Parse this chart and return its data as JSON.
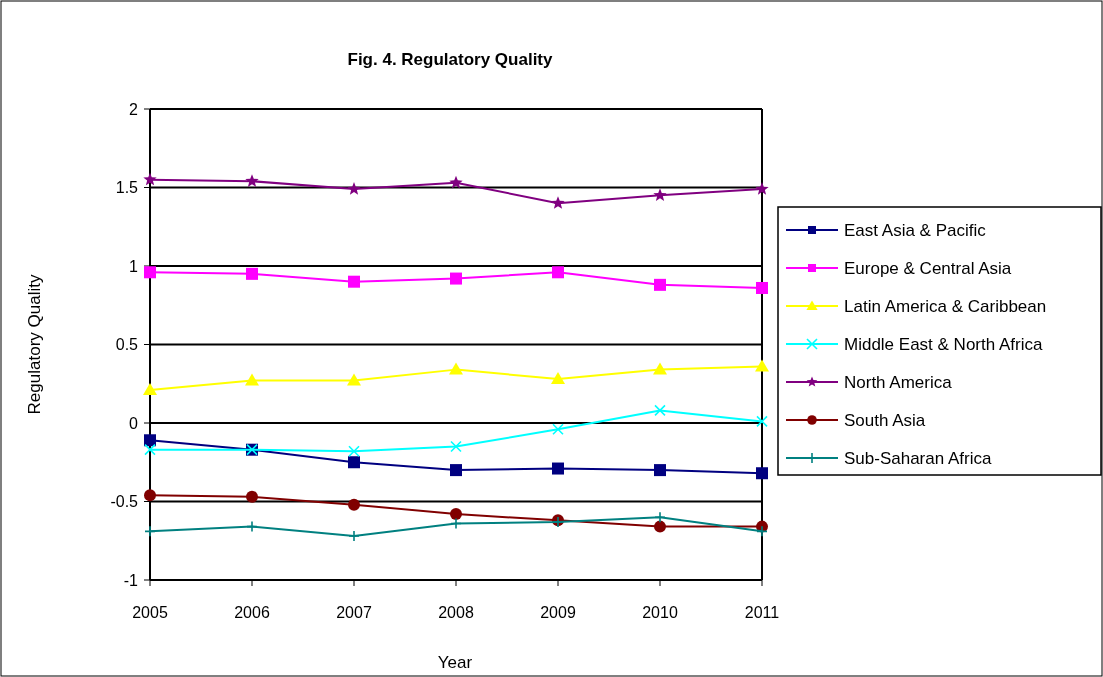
{
  "chart_data": {
    "type": "line",
    "title": "Fig. 4. Regulatory Quality",
    "xlabel": "Year",
    "ylabel": "Regulatory Quality",
    "x": [
      2005,
      2006,
      2007,
      2008,
      2009,
      2010,
      2011
    ],
    "xlim": [
      2005,
      2011
    ],
    "xticks": [
      2005,
      2006,
      2007,
      2008,
      2009,
      2010,
      2011
    ],
    "ylim": [
      -1,
      2
    ],
    "yticks": [
      -1,
      -0.5,
      0,
      0.5,
      1,
      1.5,
      2
    ],
    "grid": "y",
    "legend": "right",
    "series": [
      {
        "name": "East Asia & Pacific",
        "color": "#000080",
        "marker": "square",
        "values": [
          -0.11,
          -0.17,
          -0.25,
          -0.3,
          -0.29,
          -0.3,
          -0.32
        ]
      },
      {
        "name": "Europe & Central Asia",
        "color": "#ff00ff",
        "marker": "square",
        "values": [
          0.96,
          0.95,
          0.9,
          0.92,
          0.96,
          0.88,
          0.86
        ]
      },
      {
        "name": "Latin America & Caribbean",
        "color": "#ffff00",
        "marker": "triangle",
        "values": [
          0.21,
          0.27,
          0.27,
          0.34,
          0.28,
          0.34,
          0.36
        ]
      },
      {
        "name": "Middle East & North Africa",
        "color": "#00ffff",
        "marker": "cross",
        "values": [
          -0.17,
          -0.17,
          -0.18,
          -0.15,
          -0.04,
          0.08,
          0.01
        ]
      },
      {
        "name": "North America",
        "color": "#800080",
        "marker": "star",
        "values": [
          1.55,
          1.54,
          1.49,
          1.53,
          1.4,
          1.45,
          1.49
        ]
      },
      {
        "name": "South Asia",
        "color": "#800000",
        "marker": "circle",
        "values": [
          -0.46,
          -0.47,
          -0.52,
          -0.58,
          -0.62,
          -0.66,
          -0.66
        ]
      },
      {
        "name": "Sub-Saharan Africa",
        "color": "#008080",
        "marker": "plus",
        "values": [
          -0.69,
          -0.66,
          -0.72,
          -0.64,
          -0.63,
          -0.6,
          -0.69
        ]
      }
    ]
  }
}
